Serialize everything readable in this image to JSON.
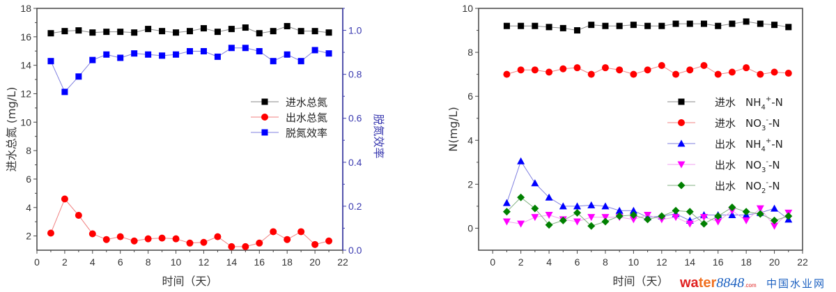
{
  "chart_data": [
    {
      "type": "line",
      "xlabel": "时间（天）",
      "ylabel": "进水总氮 (mg/L)",
      "y2label": "脱氮效率",
      "xlim": [
        0,
        22
      ],
      "ylim": [
        1,
        18
      ],
      "y2lim": [
        0,
        1.1
      ],
      "xticks": [
        0,
        2,
        4,
        6,
        8,
        10,
        12,
        14,
        16,
        18,
        20,
        22
      ],
      "yticks": [
        2,
        4,
        6,
        8,
        10,
        12,
        14,
        16,
        18
      ],
      "y2ticks": [
        "0.0",
        "0.2",
        "0.4",
        "0.6",
        "0.8",
        "1.0"
      ],
      "legend_position": "center-right",
      "x": [
        1,
        2,
        3,
        4,
        5,
        6,
        7,
        8,
        9,
        10,
        11,
        12,
        13,
        14,
        15,
        16,
        17,
        18,
        19,
        20,
        21
      ],
      "series": [
        {
          "name": "进水总氮",
          "axis": "left",
          "marker": "square",
          "color": "#000000",
          "line_color": "#888888",
          "values": [
            16.25,
            16.4,
            16.45,
            16.3,
            16.35,
            16.35,
            16.3,
            16.55,
            16.4,
            16.3,
            16.4,
            16.6,
            16.35,
            16.55,
            16.65,
            16.25,
            16.4,
            16.75,
            16.4,
            16.4,
            16.3
          ]
        },
        {
          "name": "出水总氮",
          "axis": "left",
          "marker": "circle",
          "color": "#ff0000",
          "line_color": "#f08080",
          "values": [
            2.2,
            4.6,
            3.45,
            2.15,
            1.75,
            1.95,
            1.65,
            1.8,
            1.85,
            1.8,
            1.5,
            1.55,
            1.95,
            1.25,
            1.25,
            1.5,
            2.3,
            1.75,
            2.3,
            1.4,
            1.65
          ]
        },
        {
          "name": "脱氮效率",
          "axis": "right",
          "marker": "square",
          "color": "#0000ff",
          "line_color": "#7f7fdf",
          "values": [
            0.86,
            0.72,
            0.79,
            0.865,
            0.89,
            0.875,
            0.895,
            0.89,
            0.885,
            0.89,
            0.905,
            0.905,
            0.88,
            0.92,
            0.92,
            0.905,
            0.86,
            0.89,
            0.86,
            0.91,
            0.895
          ]
        }
      ]
    },
    {
      "type": "line",
      "xlabel": "时间（天）",
      "ylabel": "N(mg/L)",
      "xlim": [
        -1,
        22
      ],
      "ylim": [
        -1,
        10
      ],
      "xticks": [
        0,
        2,
        4,
        6,
        8,
        10,
        12,
        14,
        16,
        18,
        20,
        22
      ],
      "yticks": [
        0,
        2,
        4,
        6,
        8,
        10
      ],
      "legend_position": "center-right",
      "x": [
        1,
        2,
        3,
        4,
        5,
        6,
        7,
        8,
        9,
        10,
        11,
        12,
        13,
        14,
        15,
        16,
        17,
        18,
        19,
        20,
        21
      ],
      "series": [
        {
          "name": "进水 NH4+-N",
          "prefix": "进水",
          "base": "NH",
          "sub": "4",
          "sup": "+",
          "tail": "-N",
          "marker": "square",
          "color": "#000000",
          "line_color": "#888888",
          "values": [
            9.2,
            9.2,
            9.2,
            9.15,
            9.1,
            9.0,
            9.25,
            9.2,
            9.2,
            9.25,
            9.2,
            9.2,
            9.3,
            9.3,
            9.3,
            9.2,
            9.3,
            9.4,
            9.3,
            9.25,
            9.15
          ]
        },
        {
          "name": "进水 NO3--N",
          "prefix": "进水",
          "base": "NO",
          "sub": "3",
          "sup": "-",
          "tail": "-N",
          "marker": "circle",
          "color": "#ff0000",
          "line_color": "#f08080",
          "values": [
            7.0,
            7.2,
            7.2,
            7.1,
            7.25,
            7.3,
            7.0,
            7.3,
            7.2,
            7.0,
            7.2,
            7.4,
            7.0,
            7.2,
            7.4,
            7.0,
            7.1,
            7.3,
            7.0,
            7.1,
            7.05
          ]
        },
        {
          "name": "出水 NH4+-N",
          "prefix": "出水",
          "base": "NH",
          "sub": "4",
          "sup": "+",
          "tail": "-N",
          "marker": "triangle-up",
          "color": "#0000ff",
          "line_color": "#7f7fdf",
          "values": [
            1.15,
            3.05,
            2.05,
            1.4,
            1.0,
            1.0,
            1.05,
            1.0,
            0.8,
            0.8,
            0.5,
            0.55,
            0.65,
            0.35,
            0.6,
            0.6,
            0.6,
            0.6,
            0.7,
            0.9,
            0.4
          ]
        },
        {
          "name": "出水 NO3--N",
          "prefix": "出水",
          "base": "NO",
          "sub": "3",
          "sup": "-",
          "tail": "-N",
          "marker": "triangle-down",
          "color": "#ff00ff",
          "line_color": "#f0a0f0",
          "values": [
            0.3,
            0.2,
            0.5,
            0.6,
            0.4,
            0.3,
            0.5,
            0.5,
            0.5,
            0.4,
            0.6,
            0.4,
            0.5,
            0.2,
            0.5,
            0.3,
            0.8,
            0.35,
            0.9,
            0.1,
            0.7
          ]
        },
        {
          "name": "出水 NO2--N",
          "prefix": "出水",
          "base": "NO",
          "sub": "2",
          "sup": "-",
          "tail": "-N",
          "marker": "diamond",
          "color": "#008000",
          "line_color": "#80b080",
          "values": [
            0.75,
            1.4,
            0.9,
            0.15,
            0.35,
            0.7,
            0.1,
            0.3,
            0.55,
            0.6,
            0.4,
            0.55,
            0.8,
            0.75,
            0.2,
            0.55,
            0.95,
            0.75,
            0.65,
            0.35,
            0.55
          ]
        }
      ]
    }
  ],
  "watermark": {
    "brand_a": "wa",
    "brand_b": "ter",
    "brand_c": "8848",
    "brand_d": ".com",
    "cn": "中国水业网"
  }
}
